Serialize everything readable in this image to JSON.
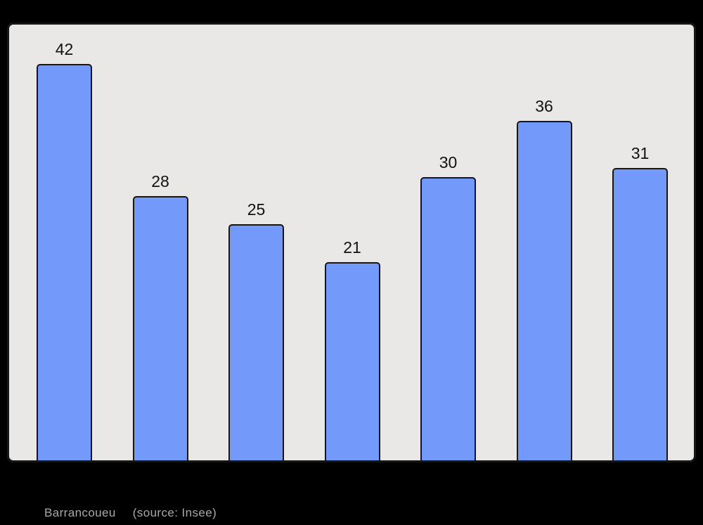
{
  "chart_data": {
    "type": "bar",
    "values": [
      42,
      28,
      25,
      21,
      30,
      36,
      31
    ],
    "data_labels_shown": true,
    "title": "",
    "xlabel": "",
    "ylabel": "",
    "ylim": [
      0,
      46
    ],
    "grid": false,
    "legend": false,
    "axis_tick_labels_visible": false,
    "bar_fill": "#7399fb",
    "bar_border": "#161616",
    "plot_background": "#e9e8e7",
    "frame_border": "#161616",
    "page_background": "#000000",
    "label_color": "#111111",
    "caption_color": "#a8a8a8"
  },
  "caption": {
    "name": "Barrancoueu",
    "source": "(source: Insee)"
  }
}
